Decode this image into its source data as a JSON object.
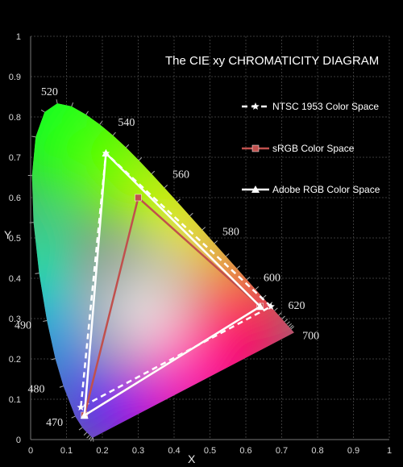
{
  "chart_data": {
    "type": "line",
    "title": "The CIE xy  CHROMATICITY  DIAGRAM",
    "xlabel": "X",
    "ylabel": "Y",
    "xlim": [
      0,
      1
    ],
    "ylim": [
      0,
      1
    ],
    "xticks": [
      "0",
      "0.1",
      "0.2",
      "0.3",
      "0.4",
      "0.5",
      "0.6",
      "0.7",
      "0.8",
      "0.9",
      "1"
    ],
    "yticks": [
      "0",
      "0.1",
      "0.2",
      "0.3",
      "0.4",
      "0.5",
      "0.6",
      "0.7",
      "0.8",
      "0.9",
      "1"
    ],
    "grid": true,
    "legend_position": "top-right",
    "spectral_locus": [
      [
        0.1741,
        0.005
      ],
      [
        0.1738,
        0.0049
      ],
      [
        0.1721,
        0.0048
      ],
      [
        0.1689,
        0.0069
      ],
      [
        0.1644,
        0.0109
      ],
      [
        0.1566,
        0.0177
      ],
      [
        0.144,
        0.0297
      ],
      [
        0.1241,
        0.0578
      ],
      [
        0.0913,
        0.1327
      ],
      [
        0.0687,
        0.2007
      ],
      [
        0.0454,
        0.295
      ],
      [
        0.0235,
        0.4127
      ],
      [
        0.0082,
        0.5384
      ],
      [
        0.0039,
        0.6548
      ],
      [
        0.0139,
        0.7502
      ],
      [
        0.0389,
        0.812
      ],
      [
        0.0743,
        0.8338
      ],
      [
        0.1142,
        0.8262
      ],
      [
        0.1547,
        0.8059
      ],
      [
        0.1929,
        0.7816
      ],
      [
        0.2296,
        0.7543
      ],
      [
        0.2658,
        0.7243
      ],
      [
        0.3016,
        0.6923
      ],
      [
        0.3373,
        0.6589
      ],
      [
        0.3731,
        0.6245
      ],
      [
        0.4087,
        0.5896
      ],
      [
        0.4441,
        0.5547
      ],
      [
        0.4788,
        0.5202
      ],
      [
        0.5125,
        0.4866
      ],
      [
        0.5448,
        0.4544
      ],
      [
        0.5752,
        0.4242
      ],
      [
        0.6029,
        0.3965
      ],
      [
        0.627,
        0.3725
      ],
      [
        0.6482,
        0.3514
      ],
      [
        0.6658,
        0.334
      ],
      [
        0.6801,
        0.3197
      ],
      [
        0.6915,
        0.3083
      ],
      [
        0.7006,
        0.2993
      ],
      [
        0.7079,
        0.292
      ],
      [
        0.714,
        0.2859
      ],
      [
        0.719,
        0.2809
      ],
      [
        0.723,
        0.277
      ],
      [
        0.726,
        0.274
      ],
      [
        0.7347,
        0.2653
      ]
    ],
    "wavelength_labels": [
      {
        "text": "470",
        "x": 0.124,
        "y": 0.058
      },
      {
        "text": "480",
        "x": 0.091,
        "y": 0.133
      },
      {
        "text": "490",
        "x": 0.045,
        "y": 0.295
      },
      {
        "text": "520",
        "x": 0.074,
        "y": 0.834
      },
      {
        "text": "540",
        "x": 0.23,
        "y": 0.754
      },
      {
        "text": "560",
        "x": 0.373,
        "y": 0.625
      },
      {
        "text": "580",
        "x": 0.512,
        "y": 0.487
      },
      {
        "text": "600",
        "x": 0.627,
        "y": 0.373
      },
      {
        "text": "620",
        "x": 0.691,
        "y": 0.308
      },
      {
        "text": "700",
        "x": 0.735,
        "y": 0.265
      }
    ],
    "series": [
      {
        "name": "NTSC 1953 Color Space",
        "color": "#ffffff",
        "dash": true,
        "marker": "star",
        "points": [
          [
            0.67,
            0.33
          ],
          [
            0.21,
            0.71
          ],
          [
            0.14,
            0.08
          ]
        ]
      },
      {
        "name": "sRGB Color Space",
        "color": "#c0504d",
        "dash": false,
        "marker": "square",
        "points": [
          [
            0.64,
            0.33
          ],
          [
            0.3,
            0.6
          ],
          [
            0.15,
            0.06
          ]
        ]
      },
      {
        "name": "Adobe RGB Color Space",
        "color": "#ffffff",
        "dash": false,
        "marker": "triangle",
        "points": [
          [
            0.64,
            0.33
          ],
          [
            0.21,
            0.71
          ],
          [
            0.15,
            0.06
          ]
        ]
      }
    ]
  }
}
